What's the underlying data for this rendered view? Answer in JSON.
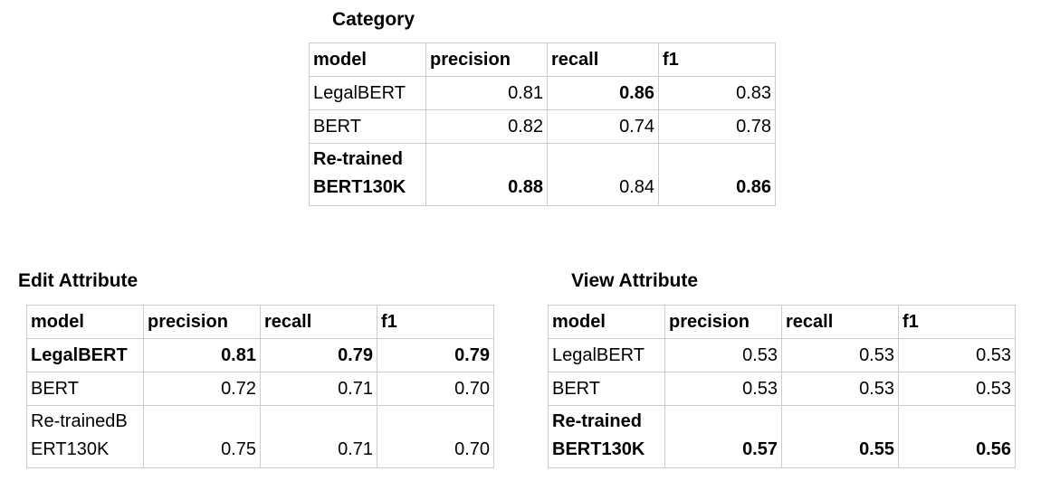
{
  "category": {
    "title": "Category",
    "headers": [
      "model",
      "precision",
      "recall",
      "f1"
    ],
    "rows": [
      {
        "model": "LegalBERT",
        "precision": "0.81",
        "recall": "0.86",
        "f1": "0.83"
      },
      {
        "model": "BERT",
        "precision": "0.82",
        "recall": "0.74",
        "f1": "0.78"
      },
      {
        "model": "Re-trained\nBERT130K",
        "precision": "0.88",
        "recall": "0.84",
        "f1": "0.86"
      }
    ]
  },
  "edit_attribute": {
    "title": "Edit Attribute",
    "headers": [
      "model",
      "precision",
      "recall",
      "f1"
    ],
    "rows": [
      {
        "model": "LegalBERT",
        "precision": "0.81",
        "recall": "0.79",
        "f1": "0.79"
      },
      {
        "model": "BERT",
        "precision": "0.72",
        "recall": "0.71",
        "f1": "0.70"
      },
      {
        "model": "Re-trainedB\nERT130K",
        "precision": "0.75",
        "recall": "0.71",
        "f1": "0.70"
      }
    ]
  },
  "view_attribute": {
    "title": "View Attribute",
    "headers": [
      "model",
      "precision",
      "recall",
      "f1"
    ],
    "rows": [
      {
        "model": "LegalBERT",
        "precision": "0.53",
        "recall": "0.53",
        "f1": "0.53"
      },
      {
        "model": "BERT",
        "precision": "0.53",
        "recall": "0.53",
        "f1": "0.53"
      },
      {
        "model": "Re-trained\nBERT130K",
        "precision": "0.57",
        "recall": "0.55",
        "f1": "0.56"
      }
    ]
  }
}
